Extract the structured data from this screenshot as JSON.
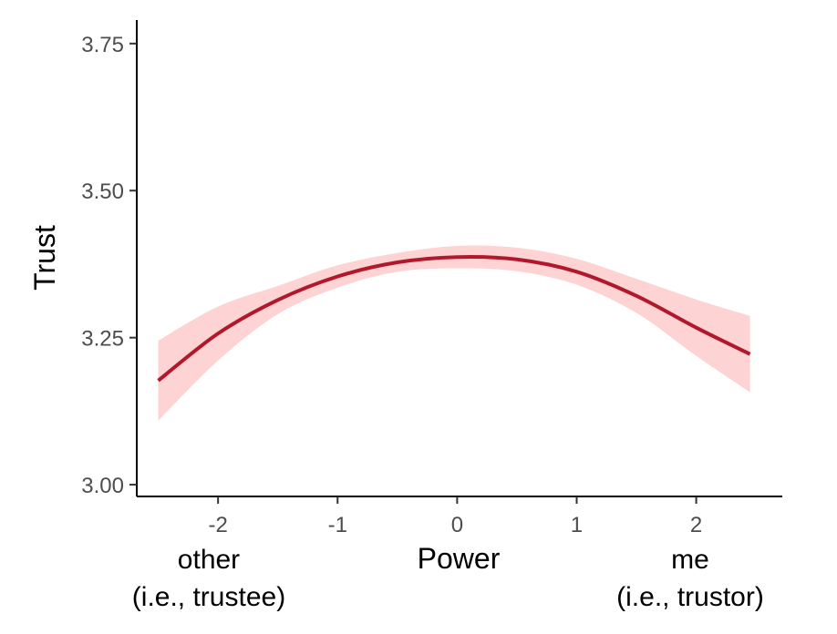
{
  "chart_data": {
    "type": "line",
    "title": "",
    "xlabel": "Power",
    "ylabel": "Trust",
    "xlim": [
      -2.68,
      2.72
    ],
    "ylim": [
      2.98,
      3.79
    ],
    "x_ticks": [
      -2,
      -1,
      0,
      1,
      2
    ],
    "x_tick_labels": [
      "-2",
      "-1",
      "0",
      "1",
      "2"
    ],
    "y_ticks": [
      3.0,
      3.25,
      3.5,
      3.75
    ],
    "y_tick_labels": [
      "3.00",
      "3.25",
      "3.50",
      "3.75"
    ],
    "grid": false,
    "series": [
      {
        "x": [
          -2.5,
          -2.0,
          -1.5,
          -1.0,
          -0.5,
          0.0,
          0.5,
          1.0,
          1.5,
          2.0,
          2.45
        ],
        "y": [
          3.177,
          3.257,
          3.314,
          3.354,
          3.378,
          3.387,
          3.383,
          3.362,
          3.321,
          3.267,
          3.222
        ],
        "ci_lower": [
          3.109,
          3.211,
          3.29,
          3.335,
          3.362,
          3.368,
          3.363,
          3.34,
          3.292,
          3.219,
          3.157
        ],
        "ci_upper": [
          3.245,
          3.303,
          3.338,
          3.373,
          3.394,
          3.406,
          3.403,
          3.384,
          3.35,
          3.315,
          3.287
        ],
        "color": "#b2182b",
        "band_color": "#fdd3d3"
      }
    ],
    "annotations": {
      "left": [
        "other",
        "(i.e., trustee)"
      ],
      "right": [
        "me",
        "(i.e., trustor)"
      ]
    }
  }
}
